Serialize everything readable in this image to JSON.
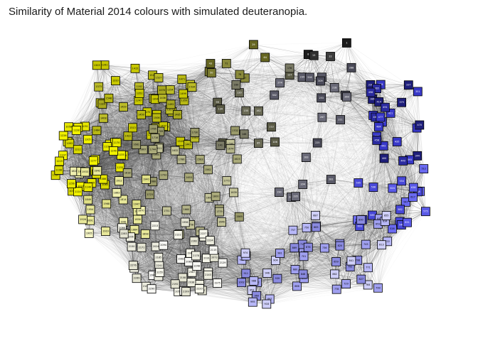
{
  "title": "Similarity of Material 2014 colours with simulated deuteranopia.",
  "palette": {
    "dark": [
      "#1b1b1b",
      "#303030",
      "#3c3c3c"
    ],
    "olive": [
      "#535319",
      "#666622",
      "#7a7a30",
      "#8a8a3c"
    ],
    "olive_grey": [
      "#5a5a45",
      "#6a6a55",
      "#7a7a65"
    ],
    "grey": [
      "#4a4a58",
      "#5a5a68",
      "#6a6a78"
    ],
    "blue_dark": [
      "#1e1e7a",
      "#2b2ba0",
      "#3838c8"
    ],
    "blue_mid": [
      "#4848d8",
      "#5a5ae8",
      "#6a6af0"
    ],
    "blue_light": [
      "#8a8ae0",
      "#a0a0f0",
      "#b8b8f8",
      "#cfcff8"
    ],
    "yellow": [
      "#e8e800",
      "#d8d800",
      "#f2f200"
    ],
    "yellow_mid": [
      "#c8c800",
      "#b8b814",
      "#a8a820",
      "#bcbc28"
    ],
    "yellow_light": [
      "#e8e89a",
      "#f0f0b0",
      "#f4f4c4",
      "#e0e088"
    ],
    "khaki": [
      "#9a9a6a",
      "#aaaa7a",
      "#b4b48a",
      "#c4c49a"
    ],
    "pale": [
      "#f6f6ea",
      "#ededdf",
      "#f8f8f4",
      "#e4e4d2"
    ],
    "edge": "#555555"
  },
  "clusters": [
    {
      "key": "dark",
      "x": [
        415,
        495
      ],
      "y": [
        50,
        85
      ],
      "n": 4,
      "seed": 11
    },
    {
      "key": "olive",
      "x": [
        275,
        385
      ],
      "y": [
        58,
        110
      ],
      "n": 8,
      "seed": 12
    },
    {
      "key": "olive_grey",
      "x": [
        300,
        410
      ],
      "y": [
        95,
        215
      ],
      "n": 14,
      "seed": 13
    },
    {
      "key": "grey",
      "x": [
        385,
        495
      ],
      "y": [
        95,
        280
      ],
      "n": 20,
      "seed": 14
    },
    {
      "key": "blue_dark",
      "x": [
        520,
        590
      ],
      "y": [
        118,
        230
      ],
      "n": 26,
      "seed": 15
    },
    {
      "key": "blue_mid",
      "x": [
        495,
        600
      ],
      "y": [
        230,
        330
      ],
      "n": 20,
      "seed": 16
    },
    {
      "key": "blue_light",
      "x": [
        400,
        545
      ],
      "y": [
        300,
        410
      ],
      "n": 36,
      "seed": 17
    },
    {
      "key": "blue_light",
      "x": [
        315,
        400
      ],
      "y": [
        350,
        432
      ],
      "n": 16,
      "seed": 18
    },
    {
      "key": "yellow",
      "x": [
        72,
        175
      ],
      "y": [
        178,
        272
      ],
      "n": 34,
      "seed": 19
    },
    {
      "key": "yellow_mid",
      "x": [
        135,
        275
      ],
      "y": [
        88,
        205
      ],
      "n": 44,
      "seed": 20
    },
    {
      "key": "khaki",
      "x": [
        175,
        345
      ],
      "y": [
        180,
        330
      ],
      "n": 36,
      "seed": 21
    },
    {
      "key": "yellow_light",
      "x": [
        100,
        215
      ],
      "y": [
        240,
        330
      ],
      "n": 24,
      "seed": 22
    },
    {
      "key": "pale",
      "x": [
        170,
        315
      ],
      "y": [
        310,
        415
      ],
      "n": 46,
      "seed": 23
    }
  ]
}
